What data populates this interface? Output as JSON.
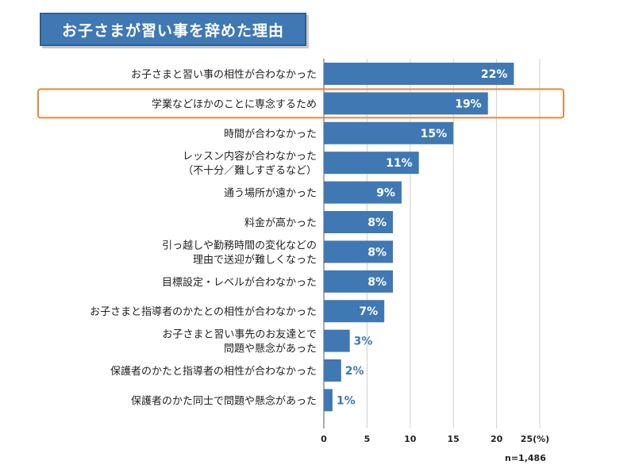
{
  "chart_data": {
    "type": "bar",
    "orientation": "horizontal",
    "title": "お子さまが習い事を辞めた理由",
    "categories": [
      [
        "お子さまと習い事の相性が合わなかった"
      ],
      [
        "学業などほかのことに専念するため"
      ],
      [
        "時間が合わなかった"
      ],
      [
        "レッスン内容が合わなかった",
        "（不十分／難しすぎるなど）"
      ],
      [
        "通う場所が遠かった"
      ],
      [
        "料金が高かった"
      ],
      [
        "引っ越しや勤務時間の変化などの",
        "理由で送迎が難しくなった"
      ],
      [
        "目標設定・レベルが合わなかった"
      ],
      [
        "お子さまと指導者のかたとの相性が合わなかった"
      ],
      [
        "お子さまと習い事先のお友達とで",
        "問題や懸念があった"
      ],
      [
        "保護者のかたと指導者の相性が合わなかった"
      ],
      [
        "保護者のかた同士で問題や懸念があった"
      ]
    ],
    "values": [
      22,
      19,
      15,
      11,
      9,
      8,
      8,
      8,
      7,
      3,
      2,
      1
    ],
    "value_labels": [
      "22%",
      "19%",
      "15%",
      "11%",
      "9%",
      "8%",
      "8%",
      "8%",
      "7%",
      "3%",
      "2%",
      "1%"
    ],
    "xlim": [
      0,
      25
    ],
    "xticks": [
      0,
      5,
      10,
      15,
      20,
      25
    ],
    "xtick_labels": [
      "0",
      "5",
      "10",
      "15",
      "20",
      "25(%)"
    ],
    "highlighted_index": 1,
    "note": "n=1,486",
    "bar_color": "#3f78b3",
    "highlight_color": "#e8873a"
  }
}
